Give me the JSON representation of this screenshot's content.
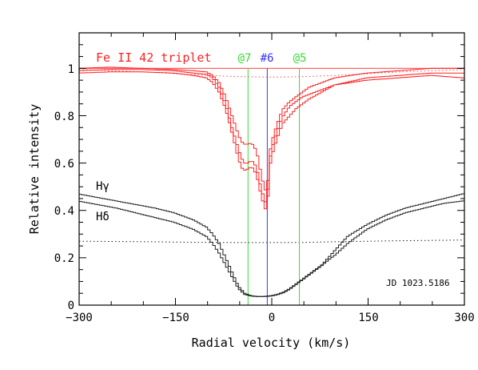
{
  "chart_data": {
    "type": "line",
    "xlabel": "Radial velocity (km/s)",
    "ylabel": "Relative intensity",
    "xlim": [
      -300,
      300
    ],
    "ylim": [
      0,
      1.15
    ],
    "x_ticks": [
      -300,
      -150,
      0,
      150,
      300
    ],
    "x_tick_labels": [
      "−300",
      "−150",
      "0",
      "150",
      "300"
    ],
    "y_ticks": [
      0,
      0.2,
      0.4,
      0.6,
      0.8,
      1
    ],
    "y_tick_labels": [
      "0",
      "0.2",
      "0.4",
      "0.6",
      "0.8",
      "1"
    ],
    "annotations": {
      "fe_label": "Fe II 42 triplet",
      "hgamma_label": "Hγ",
      "hdelta_label": "Hδ",
      "jd_label": "JD 1023.5186",
      "marker_labels": [
        "@7",
        "#6",
        "@5"
      ]
    },
    "vertical_markers": [
      {
        "label": "@7",
        "x": -37,
        "color": "#33dd33"
      },
      {
        "label": "#6",
        "x": -7,
        "color": "#3333ff"
      },
      {
        "label": "@5",
        "x": 43,
        "color": "#33dd33"
      }
    ],
    "continuum_line": {
      "y": 1.0,
      "color": "#ff6666"
    },
    "fe_series": [
      {
        "color": "#ff2222",
        "x": [
          -300,
          -250,
          -200,
          -150,
          -120,
          -100,
          -90,
          -80,
          -70,
          -60,
          -50,
          -45,
          -40,
          -35,
          -30,
          -25,
          -20,
          -15,
          -10,
          -7,
          -5,
          -2,
          0,
          5,
          10,
          15,
          20,
          30,
          40,
          50,
          60,
          80,
          100,
          150,
          200,
          250,
          300
        ],
        "y": [
          0.98,
          0.985,
          0.985,
          0.98,
          0.97,
          0.96,
          0.94,
          0.9,
          0.83,
          0.73,
          0.62,
          0.58,
          0.57,
          0.575,
          0.585,
          0.57,
          0.53,
          0.47,
          0.42,
          0.4,
          0.43,
          0.52,
          0.6,
          0.66,
          0.7,
          0.74,
          0.77,
          0.8,
          0.83,
          0.85,
          0.87,
          0.9,
          0.93,
          0.96,
          0.97,
          0.98,
          0.98
        ]
      },
      {
        "color": "#ff2222",
        "x": [
          -300,
          -250,
          -200,
          -150,
          -120,
          -100,
          -90,
          -80,
          -70,
          -60,
          -50,
          -45,
          -40,
          -35,
          -30,
          -25,
          -20,
          -15,
          -10,
          -7,
          -5,
          -2,
          0,
          5,
          10,
          15,
          20,
          30,
          40,
          50,
          60,
          80,
          100,
          150,
          200,
          250,
          300
        ],
        "y": [
          0.99,
          0.995,
          0.995,
          0.99,
          0.98,
          0.975,
          0.96,
          0.92,
          0.85,
          0.75,
          0.66,
          0.62,
          0.6,
          0.6,
          0.61,
          0.6,
          0.56,
          0.5,
          0.45,
          0.43,
          0.46,
          0.55,
          0.63,
          0.69,
          0.73,
          0.77,
          0.8,
          0.84,
          0.86,
          0.88,
          0.89,
          0.91,
          0.93,
          0.95,
          0.96,
          0.97,
          0.96
        ]
      },
      {
        "color": "#ff2222",
        "x": [
          -300,
          -250,
          -200,
          -150,
          -120,
          -100,
          -90,
          -80,
          -70,
          -60,
          -50,
          -45,
          -40,
          -35,
          -30,
          -25,
          -20,
          -15,
          -10,
          -7,
          -5,
          -2,
          0,
          5,
          10,
          15,
          20,
          30,
          40,
          50,
          60,
          80,
          100,
          150,
          200,
          250,
          300
        ],
        "y": [
          1.0,
          1.005,
          1.0,
          0.995,
          0.99,
          0.985,
          0.97,
          0.94,
          0.88,
          0.8,
          0.72,
          0.69,
          0.68,
          0.68,
          0.685,
          0.67,
          0.63,
          0.56,
          0.5,
          0.48,
          0.5,
          0.58,
          0.66,
          0.72,
          0.76,
          0.8,
          0.83,
          0.86,
          0.88,
          0.9,
          0.92,
          0.94,
          0.96,
          0.98,
          0.99,
          1.0,
          1.0
        ]
      }
    ],
    "fe_fit": {
      "style": "dotted",
      "x": [
        -300,
        -200,
        -100,
        -50,
        0,
        50,
        100,
        200,
        300
      ],
      "y": [
        0.995,
        0.985,
        0.97,
        0.965,
        0.963,
        0.965,
        0.97,
        0.985,
        0.995
      ]
    },
    "h_series": [
      {
        "name": "Hγ",
        "color": "#222222",
        "x": [
          -300,
          -270,
          -240,
          -210,
          -180,
          -150,
          -120,
          -100,
          -90,
          -80,
          -70,
          -60,
          -50,
          -40,
          -30,
          -20,
          -10,
          0,
          10,
          20,
          30,
          40,
          50,
          60,
          70,
          80,
          90,
          100,
          120,
          150,
          180,
          210,
          240,
          270,
          300
        ],
        "y": [
          0.47,
          0.455,
          0.44,
          0.425,
          0.41,
          0.39,
          0.36,
          0.33,
          0.3,
          0.26,
          0.2,
          0.14,
          0.08,
          0.05,
          0.04,
          0.037,
          0.037,
          0.04,
          0.045,
          0.055,
          0.07,
          0.09,
          0.11,
          0.13,
          0.15,
          0.17,
          0.2,
          0.23,
          0.29,
          0.34,
          0.38,
          0.41,
          0.43,
          0.45,
          0.47
        ]
      },
      {
        "name": "Hδ",
        "color": "#222222",
        "x": [
          -300,
          -270,
          -240,
          -210,
          -180,
          -150,
          -120,
          -100,
          -90,
          -80,
          -70,
          -60,
          -50,
          -40,
          -30,
          -20,
          -10,
          0,
          10,
          20,
          30,
          40,
          50,
          60,
          70,
          80,
          90,
          100,
          120,
          150,
          180,
          210,
          240,
          270,
          300
        ],
        "y": [
          0.44,
          0.425,
          0.41,
          0.39,
          0.37,
          0.35,
          0.32,
          0.29,
          0.26,
          0.22,
          0.17,
          0.12,
          0.07,
          0.045,
          0.038,
          0.036,
          0.036,
          0.038,
          0.043,
          0.052,
          0.067,
          0.087,
          0.107,
          0.127,
          0.147,
          0.167,
          0.19,
          0.21,
          0.26,
          0.32,
          0.36,
          0.39,
          0.41,
          0.43,
          0.44
        ]
      }
    ],
    "h_fit": {
      "style": "dotted",
      "x": [
        -300,
        -200,
        -100,
        -50,
        0,
        50,
        100,
        200,
        300
      ],
      "y": [
        0.27,
        0.268,
        0.265,
        0.264,
        0.264,
        0.265,
        0.268,
        0.272,
        0.275
      ]
    }
  }
}
